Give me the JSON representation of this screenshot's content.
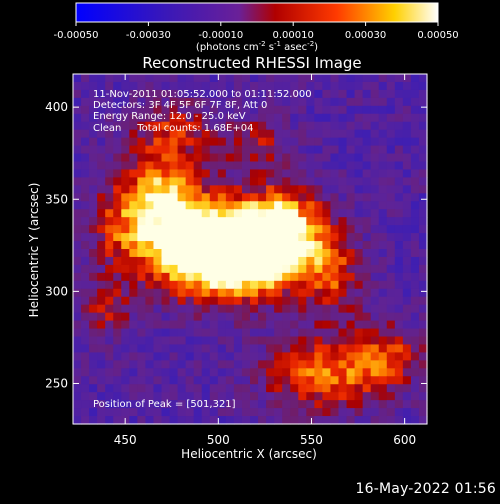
{
  "colorbar": {
    "ticks": [
      "-0.00050",
      "-0.00030",
      "-0.00010",
      "0.00010",
      "0.00030",
      "0.00050"
    ],
    "unit_main": "(photons cm",
    "unit_exp1": "-2",
    "unit_s": " s",
    "unit_exp2": "-1",
    "unit_asec": " asec",
    "unit_exp3": "-2",
    "unit_close": ")",
    "min": -0.0005,
    "max": 0.0005
  },
  "chart_data": {
    "type": "heatmap",
    "title": "Reconstructed RHESSI Image",
    "xlabel": "Heliocentric X (arcsec)",
    "ylabel": "Heliocentric Y (arcsec)",
    "xlim": [
      422,
      612
    ],
    "ylim": [
      228,
      418
    ],
    "xticks": [
      450,
      500,
      550,
      600
    ],
    "yticks": [
      250,
      300,
      350,
      400
    ],
    "annotations": [
      "11-Nov-2011 01:05:52.000 to 01:11:52.000",
      "Detectors: 3F 4F 5F 6F 7F 8F, Att 0",
      "Energy Range: 12.0 - 25.0 keV",
      "Clean     Total counts: 1.68E+04"
    ],
    "peak_label": "Position of Peak = [501,321]",
    "peak": [
      501,
      321
    ],
    "sources": [
      {
        "x": 501,
        "y": 321,
        "sx": 22,
        "sy": 18,
        "amp": 1.0
      },
      {
        "x": 520,
        "y": 322,
        "sx": 18,
        "sy": 14,
        "amp": 0.75
      },
      {
        "x": 535,
        "y": 335,
        "sx": 16,
        "sy": 16,
        "amp": 0.7
      },
      {
        "x": 480,
        "y": 330,
        "sx": 15,
        "sy": 15,
        "amp": 0.65
      },
      {
        "x": 470,
        "y": 355,
        "sx": 14,
        "sy": 12,
        "amp": 0.55
      },
      {
        "x": 450,
        "y": 335,
        "sx": 14,
        "sy": 18,
        "amp": 0.5
      },
      {
        "x": 560,
        "y": 310,
        "sx": 12,
        "sy": 16,
        "amp": 0.5
      },
      {
        "x": 475,
        "y": 385,
        "sx": 16,
        "sy": 12,
        "amp": 0.45
      },
      {
        "x": 555,
        "y": 255,
        "sx": 22,
        "sy": 14,
        "amp": 0.6
      },
      {
        "x": 590,
        "y": 265,
        "sx": 14,
        "sy": 12,
        "amp": 0.45
      },
      {
        "x": 520,
        "y": 380,
        "sx": 12,
        "sy": 10,
        "amp": 0.35
      },
      {
        "x": 440,
        "y": 290,
        "sx": 10,
        "sy": 10,
        "amp": 0.35
      }
    ]
  },
  "timestamp": "16-May-2022 01:56"
}
